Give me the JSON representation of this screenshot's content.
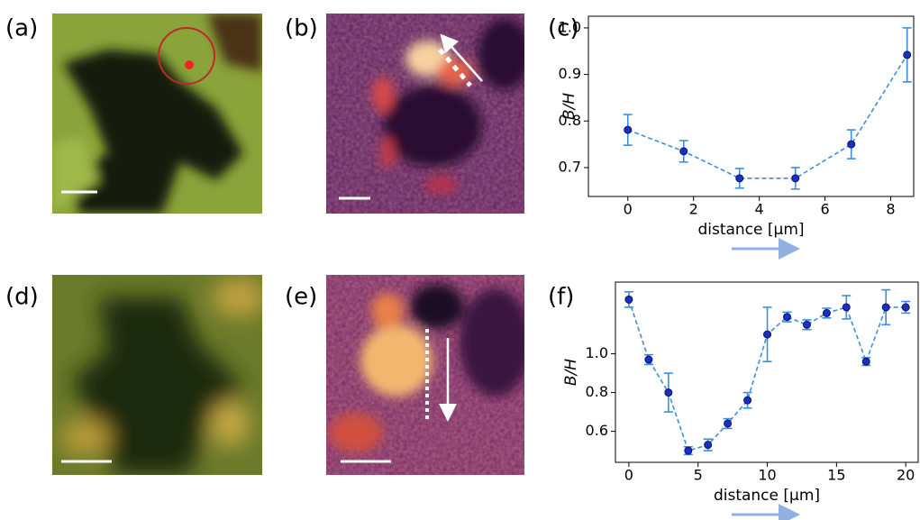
{
  "panel_labels": [
    "(a)",
    "(b)",
    "(c)",
    "(d)",
    "(e)",
    "(f)"
  ],
  "chart_data": [
    {
      "type": "line",
      "xlabel": "distance [μm]",
      "ylabel": "B/H",
      "x": [
        0,
        1.7,
        3.4,
        5.1,
        6.8,
        8.5
      ],
      "values": [
        0.781,
        0.735,
        0.677,
        0.677,
        0.75,
        0.942
      ],
      "errors": [
        0.033,
        0.023,
        0.021,
        0.023,
        0.031,
        0.058
      ],
      "color": "#3b8fe0",
      "marker_color": "#1c2fc4",
      "xlim": [
        -1.2,
        8.7
      ],
      "xticks": [
        0,
        2,
        4,
        6,
        8
      ],
      "ylim": [
        0.638,
        1.025
      ],
      "yticks": [
        0.7,
        0.8,
        0.9,
        {
          "value": 1,
          "label": "1.0"
        }
      ]
    },
    {
      "type": "line",
      "xlabel": "distance [μm]",
      "ylabel": "B/H",
      "x": [
        0,
        1.43,
        2.86,
        4.29,
        5.71,
        7.14,
        8.57,
        10,
        11.43,
        12.86,
        14.29,
        15.71,
        17.14,
        18.57,
        20
      ],
      "values": [
        1.28,
        0.97,
        0.8,
        0.5,
        0.53,
        0.64,
        0.76,
        1.1,
        1.19,
        1.15,
        1.21,
        1.24,
        0.96,
        1.24,
        1.24
      ],
      "errors": [
        0.04,
        0.025,
        0.1,
        0.02,
        0.03,
        0.025,
        0.04,
        0.14,
        0.025,
        0.025,
        0.025,
        0.06,
        0.02,
        0.09,
        0.03
      ],
      "color": "#3b8fe0",
      "marker_color": "#1c2fc4",
      "xlim": [
        -0.97,
        20.9
      ],
      "xticks": [
        0,
        5,
        10,
        15,
        20
      ],
      "ylim": [
        0.44,
        1.37
      ],
      "yticks": [
        0.6,
        0.8,
        {
          "value": 1,
          "label": "1.0"
        }
      ]
    }
  ]
}
